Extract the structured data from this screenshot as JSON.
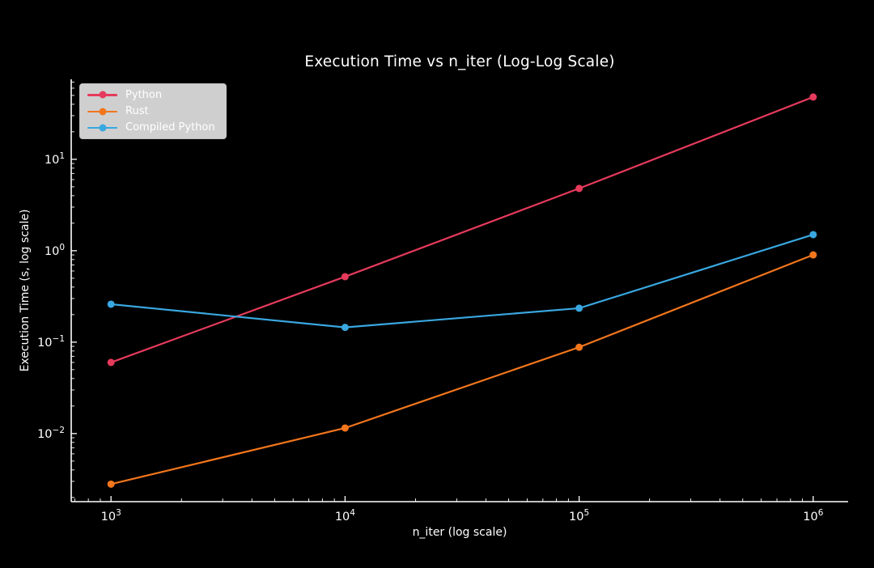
{
  "chart_data": {
    "type": "line",
    "title": "Execution Time vs n_iter (Log-Log Scale)",
    "xlabel": "n_iter (log scale)",
    "ylabel": "Execution Time (s, log scale)",
    "x_scale": "log",
    "y_scale": "log",
    "x": [
      1000,
      10000,
      100000,
      1000000
    ],
    "series": [
      {
        "name": "Python",
        "color": "#e63a5c",
        "values": [
          0.06,
          0.52,
          4.8,
          48
        ]
      },
      {
        "name": "Rust",
        "color": "#f2761c",
        "values": [
          0.0028,
          0.0115,
          0.088,
          0.9
        ]
      },
      {
        "name": "Compiled Python",
        "color": "#39a7e0",
        "values": [
          0.26,
          0.145,
          0.235,
          1.5
        ]
      }
    ],
    "xlim": [
      676,
      1410000
    ],
    "ylim": [
      0.0018,
      75
    ],
    "x_ticks": [
      {
        "value": 1000,
        "label": "10^3"
      },
      {
        "value": 10000,
        "label": "10^4"
      },
      {
        "value": 100000,
        "label": "10^5"
      },
      {
        "value": 1000000,
        "label": "10^6"
      }
    ],
    "y_ticks": [
      {
        "value": 10,
        "label": "10^1"
      },
      {
        "value": 1,
        "label": "10^0"
      },
      {
        "value": 0.1,
        "label": "10^-1"
      },
      {
        "value": 0.01,
        "label": "10^-2"
      }
    ],
    "grid": false,
    "marker": "circle",
    "legend": {
      "position": "upper left",
      "background": "#cfcfcf",
      "text_color": "#ffffff"
    },
    "colors": {
      "background": "#000000",
      "text": "#ffffff",
      "spine": "#ffffff"
    }
  }
}
